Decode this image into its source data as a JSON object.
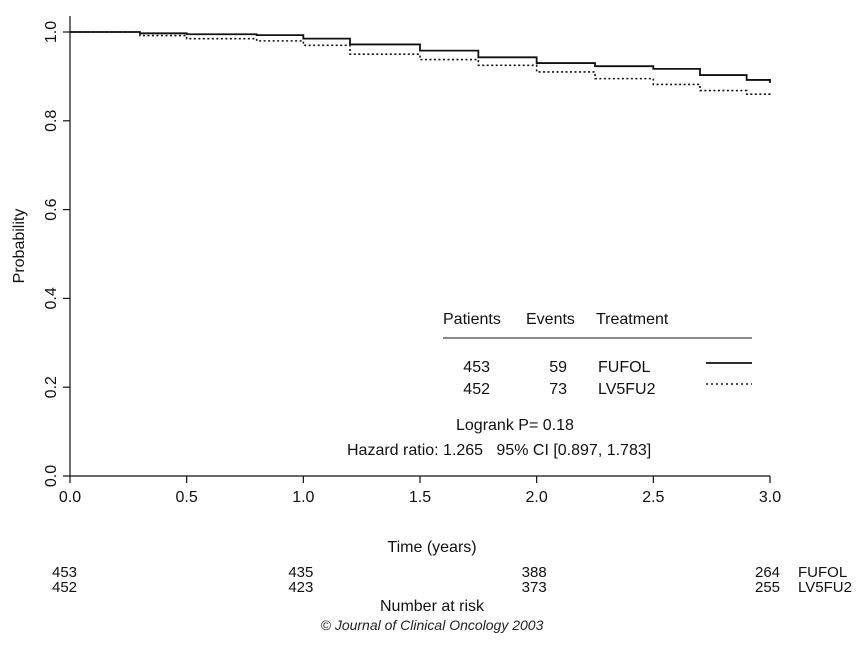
{
  "chart_data": {
    "type": "line",
    "xlabel": "Time (years)",
    "ylabel": "Probability",
    "xlim": [
      0,
      3
    ],
    "ylim": [
      0,
      1
    ],
    "xticks": [
      "0.0",
      "0.5",
      "1.0",
      "1.5",
      "2.0",
      "2.5",
      "3.0"
    ],
    "yticks": [
      "0.0",
      "0.2",
      "0.4",
      "0.6",
      "0.8",
      "1.0"
    ],
    "grid": false,
    "series": [
      {
        "name": "FUFOL",
        "line_style": "solid",
        "patients": "453",
        "events": "59",
        "points": [
          [
            0,
            1.0
          ],
          [
            0.3,
            0.997
          ],
          [
            0.5,
            0.995
          ],
          [
            0.8,
            0.993
          ],
          [
            1.0,
            0.985
          ],
          [
            1.2,
            0.972
          ],
          [
            1.5,
            0.958
          ],
          [
            1.75,
            0.943
          ],
          [
            2.0,
            0.93
          ],
          [
            2.25,
            0.923
          ],
          [
            2.5,
            0.917
          ],
          [
            2.7,
            0.903
          ],
          [
            2.9,
            0.892
          ],
          [
            3.0,
            0.885
          ]
        ]
      },
      {
        "name": "LV5FU2",
        "line_style": "dotted",
        "patients": "452",
        "events": "73",
        "points": [
          [
            0,
            1.0
          ],
          [
            0.3,
            0.992
          ],
          [
            0.5,
            0.985
          ],
          [
            0.8,
            0.98
          ],
          [
            1.0,
            0.97
          ],
          [
            1.2,
            0.95
          ],
          [
            1.5,
            0.938
          ],
          [
            1.75,
            0.925
          ],
          [
            2.0,
            0.91
          ],
          [
            2.25,
            0.895
          ],
          [
            2.5,
            0.882
          ],
          [
            2.7,
            0.868
          ],
          [
            2.9,
            0.86
          ],
          [
            3.0,
            0.855
          ]
        ]
      }
    ],
    "legend": {
      "placement": "bottom-right",
      "headers": [
        "Patients",
        "Events",
        "Treatment"
      ]
    },
    "annotations": {
      "logrank": "Logrank P= 0.18",
      "hazard": "Hazard ratio: 1.265   95% CI [0.897, 1.783]"
    },
    "risk_table": {
      "title": "Number at risk",
      "times": [
        0,
        1,
        2,
        3
      ],
      "rows": [
        {
          "label": "FUFOL",
          "values": [
            "453",
            "435",
            "388",
            "264"
          ]
        },
        {
          "label": "LV5FU2",
          "values": [
            "452",
            "423",
            "373",
            "255"
          ]
        }
      ]
    }
  },
  "credit": "© Journal of Clinical Oncology 2003"
}
